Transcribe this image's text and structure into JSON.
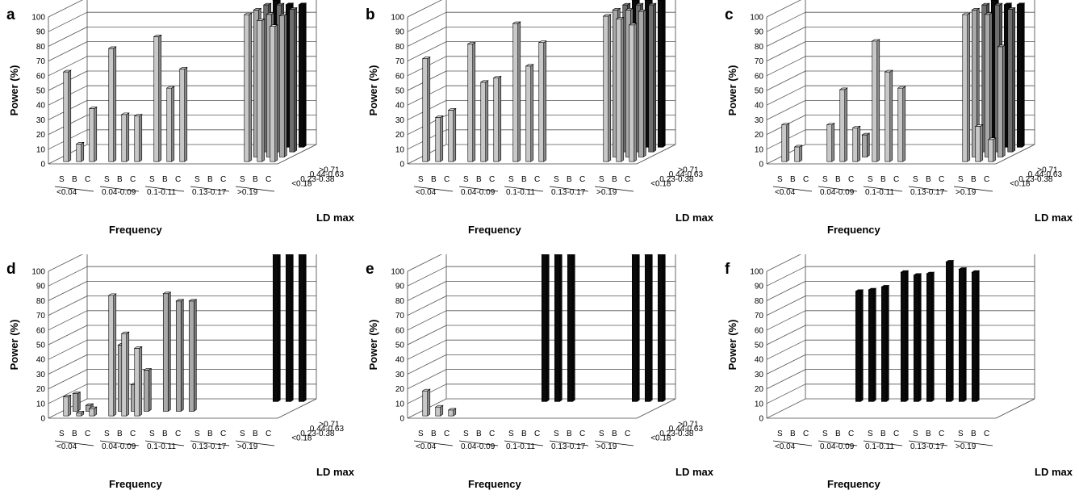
{
  "figure": {
    "panels": [
      "a",
      "b",
      "c",
      "d",
      "e",
      "f"
    ],
    "shade_colors": {
      "<0.18": "#c8c8c8",
      "0.23-0.38": "#a9a9a9",
      "0.44-0.63": "#6f6f6f",
      ">0.71": "#0a0a0a"
    }
  },
  "chart_data": [
    {
      "panel": "a",
      "type": "bar",
      "subtype": "3d-bar",
      "ylabel": "Power (%)",
      "xlabel": "Frequency",
      "zlabel": "LD max",
      "ylim": [
        0,
        100
      ],
      "y_ticks": [
        0,
        10,
        20,
        30,
        40,
        50,
        60,
        70,
        80,
        90,
        100
      ],
      "frequency_groups": [
        "<0.04",
        "0.04-0.09",
        "0.1-0.11",
        "0.13-0.17",
        ">0.19"
      ],
      "methods": [
        "S",
        "B",
        "C"
      ],
      "ld_levels": [
        "<0.18",
        "0.23-0.38",
        "0.44-0.63",
        ">0.71"
      ],
      "bars": [
        {
          "freq": "<0.04",
          "method": "S",
          "ld": "<0.18",
          "value": 61
        },
        {
          "freq": "<0.04",
          "method": "B",
          "ld": "<0.18",
          "value": 12
        },
        {
          "freq": "<0.04",
          "method": "C",
          "ld": "<0.18",
          "value": 36
        },
        {
          "freq": "0.04-0.09",
          "method": "S",
          "ld": "<0.18",
          "value": 77
        },
        {
          "freq": "0.04-0.09",
          "method": "B",
          "ld": "<0.18",
          "value": 32
        },
        {
          "freq": "0.04-0.09",
          "method": "C",
          "ld": "<0.18",
          "value": 31
        },
        {
          "freq": "0.1-0.11",
          "method": "S",
          "ld": "<0.18",
          "value": 85
        },
        {
          "freq": "0.1-0.11",
          "method": "B",
          "ld": "<0.18",
          "value": 50
        },
        {
          "freq": "0.1-0.11",
          "method": "C",
          "ld": "<0.18",
          "value": 63
        },
        {
          "freq": ">0.19",
          "method": "S",
          "ld": "<0.18",
          "value": 100
        },
        {
          "freq": ">0.19",
          "method": "B",
          "ld": "<0.18",
          "value": 96
        },
        {
          "freq": ">0.19",
          "method": "C",
          "ld": "<0.18",
          "value": 92
        },
        {
          "freq": ">0.19",
          "method": "S",
          "ld": "0.23-0.38",
          "value": 100
        },
        {
          "freq": ">0.19",
          "method": "B",
          "ld": "0.23-0.38",
          "value": 97
        },
        {
          "freq": ">0.19",
          "method": "C",
          "ld": "0.23-0.38",
          "value": 96
        },
        {
          "freq": ">0.19",
          "method": "S",
          "ld": "0.44-0.63",
          "value": 100
        },
        {
          "freq": ">0.19",
          "method": "B",
          "ld": "0.44-0.63",
          "value": 100
        },
        {
          "freq": ">0.19",
          "method": "C",
          "ld": "0.44-0.63",
          "value": 97
        },
        {
          "freq": ">0.19",
          "method": "S",
          "ld": ">0.71",
          "value": 100
        },
        {
          "freq": ">0.19",
          "method": "B",
          "ld": ">0.71",
          "value": 97
        },
        {
          "freq": ">0.19",
          "method": "C",
          "ld": ">0.71",
          "value": 97
        }
      ]
    },
    {
      "panel": "b",
      "type": "bar",
      "subtype": "3d-bar",
      "ylabel": "Power (%)",
      "xlabel": "Frequency",
      "zlabel": "LD max",
      "ylim": [
        0,
        100
      ],
      "y_ticks": [
        0,
        10,
        20,
        30,
        40,
        50,
        60,
        70,
        80,
        90,
        100
      ],
      "frequency_groups": [
        "<0.04",
        "0.04-0.09",
        "0.1-0.11",
        "0.13-0.17",
        ">0.19"
      ],
      "methods": [
        "S",
        "B",
        "C"
      ],
      "ld_levels": [
        "<0.18",
        "0.23-0.38",
        "0.44-0.63",
        ">0.71"
      ],
      "bars": [
        {
          "freq": "<0.04",
          "method": "S",
          "ld": "<0.18",
          "value": 70
        },
        {
          "freq": "<0.04",
          "method": "B",
          "ld": "<0.18",
          "value": 30
        },
        {
          "freq": "<0.04",
          "method": "C",
          "ld": "<0.18",
          "value": 35
        },
        {
          "freq": "0.04-0.09",
          "method": "S",
          "ld": "<0.18",
          "value": 80
        },
        {
          "freq": "0.04-0.09",
          "method": "B",
          "ld": "<0.18",
          "value": 54
        },
        {
          "freq": "0.04-0.09",
          "method": "C",
          "ld": "<0.18",
          "value": 57
        },
        {
          "freq": "0.1-0.11",
          "method": "S",
          "ld": "<0.18",
          "value": 94
        },
        {
          "freq": "0.1-0.11",
          "method": "B",
          "ld": "<0.18",
          "value": 65
        },
        {
          "freq": "0.1-0.11",
          "method": "C",
          "ld": "<0.18",
          "value": 81
        },
        {
          "freq": ">0.19",
          "method": "S",
          "ld": "<0.18",
          "value": 99
        },
        {
          "freq": ">0.19",
          "method": "B",
          "ld": "<0.18",
          "value": 97
        },
        {
          "freq": ">0.19",
          "method": "C",
          "ld": "<0.18",
          "value": 93
        },
        {
          "freq": ">0.19",
          "method": "S",
          "ld": "0.23-0.38",
          "value": 100
        },
        {
          "freq": ">0.19",
          "method": "B",
          "ld": "0.23-0.38",
          "value": 100
        },
        {
          "freq": ">0.19",
          "method": "C",
          "ld": "0.23-0.38",
          "value": 99
        },
        {
          "freq": ">0.19",
          "method": "S",
          "ld": "0.44-0.63",
          "value": 100
        },
        {
          "freq": ">0.19",
          "method": "B",
          "ld": "0.44-0.63",
          "value": 100
        },
        {
          "freq": ">0.19",
          "method": "C",
          "ld": "0.44-0.63",
          "value": 100
        },
        {
          "freq": ">0.19",
          "method": "S",
          "ld": ">0.71",
          "value": 100
        },
        {
          "freq": ">0.19",
          "method": "B",
          "ld": ">0.71",
          "value": 100
        },
        {
          "freq": ">0.19",
          "method": "C",
          "ld": ">0.71",
          "value": 100
        }
      ]
    },
    {
      "panel": "c",
      "type": "bar",
      "subtype": "3d-bar",
      "ylabel": "Power (%)",
      "xlabel": "Frequency",
      "zlabel": "LD max",
      "ylim": [
        0,
        100
      ],
      "y_ticks": [
        0,
        10,
        20,
        30,
        40,
        50,
        60,
        70,
        80,
        90,
        100
      ],
      "frequency_groups": [
        "<0.04",
        "0.04-0.09",
        "0.1-0.11",
        "0.13-0.17",
        ">0.19"
      ],
      "methods": [
        "S",
        "B",
        "C"
      ],
      "ld_levels": [
        "<0.18",
        "0.23-0.38",
        "0.44-0.63",
        ">0.71"
      ],
      "bars": [
        {
          "freq": "<0.04",
          "method": "S",
          "ld": "<0.18",
          "value": 25
        },
        {
          "freq": "<0.04",
          "method": "B",
          "ld": "<0.18",
          "value": 10
        },
        {
          "freq": "0.04-0.09",
          "method": "S",
          "ld": "<0.18",
          "value": 25
        },
        {
          "freq": "0.04-0.09",
          "method": "B",
          "ld": "<0.18",
          "value": 49
        },
        {
          "freq": "0.04-0.09",
          "method": "C",
          "ld": "<0.18",
          "value": 23
        },
        {
          "freq": "0.04-0.09",
          "method": "C",
          "ld": "0.23-0.38",
          "value": 15
        },
        {
          "freq": "0.1-0.11",
          "method": "S",
          "ld": "<0.18",
          "value": 82
        },
        {
          "freq": "0.1-0.11",
          "method": "B",
          "ld": "<0.18",
          "value": 61
        },
        {
          "freq": "0.1-0.11",
          "method": "C",
          "ld": "<0.18",
          "value": 50
        },
        {
          "freq": ">0.19",
          "method": "S",
          "ld": "<0.18",
          "value": 100
        },
        {
          "freq": ">0.19",
          "method": "B",
          "ld": "<0.18",
          "value": 24
        },
        {
          "freq": ">0.19",
          "method": "C",
          "ld": "<0.18",
          "value": 15
        },
        {
          "freq": ">0.19",
          "method": "S",
          "ld": "0.23-0.38",
          "value": 100
        },
        {
          "freq": ">0.19",
          "method": "B",
          "ld": "0.23-0.38",
          "value": 97
        },
        {
          "freq": ">0.19",
          "method": "C",
          "ld": "0.23-0.38",
          "value": 75
        },
        {
          "freq": ">0.19",
          "method": "S",
          "ld": "0.44-0.63",
          "value": 100
        },
        {
          "freq": ">0.19",
          "method": "B",
          "ld": "0.44-0.63",
          "value": 100
        },
        {
          "freq": ">0.19",
          "method": "C",
          "ld": "0.44-0.63",
          "value": 97
        },
        {
          "freq": ">0.19",
          "method": "S",
          "ld": ">0.71",
          "value": 100
        },
        {
          "freq": ">0.19",
          "method": "B",
          "ld": ">0.71",
          "value": 97
        },
        {
          "freq": ">0.19",
          "method": "C",
          "ld": ">0.71",
          "value": 97
        }
      ]
    },
    {
      "panel": "d",
      "type": "bar",
      "subtype": "3d-bar",
      "ylabel": "Power (%)",
      "xlabel": "Frequency",
      "zlabel": "LD max",
      "ylim": [
        0,
        100
      ],
      "y_ticks": [
        0,
        10,
        20,
        30,
        40,
        50,
        60,
        70,
        80,
        90,
        100
      ],
      "frequency_groups": [
        "<0.04",
        "0.04-0.09",
        "0.1-0.11",
        "0.13-0.17",
        ">0.19"
      ],
      "methods": [
        "S",
        "B",
        "C"
      ],
      "ld_levels": [
        "<0.18",
        "0.23-0.38",
        "0.44-0.63",
        ">0.71"
      ],
      "bars": [
        {
          "freq": "<0.04",
          "method": "S",
          "ld": "<0.18",
          "value": 13
        },
        {
          "freq": "<0.04",
          "method": "B",
          "ld": "<0.18",
          "value": 2
        },
        {
          "freq": "<0.04",
          "method": "C",
          "ld": "<0.18",
          "value": 5
        },
        {
          "freq": "<0.04",
          "method": "S",
          "ld": "0.23-0.38",
          "value": 12
        },
        {
          "freq": "<0.04",
          "method": "B",
          "ld": "0.23-0.38",
          "value": 4
        },
        {
          "freq": "0.04-0.09",
          "method": "S",
          "ld": "<0.18",
          "value": 82
        },
        {
          "freq": "0.04-0.09",
          "method": "B",
          "ld": "<0.18",
          "value": 56
        },
        {
          "freq": "0.04-0.09",
          "method": "C",
          "ld": "<0.18",
          "value": 46
        },
        {
          "freq": "0.04-0.09",
          "method": "S",
          "ld": "0.23-0.38",
          "value": 45
        },
        {
          "freq": "0.04-0.09",
          "method": "B",
          "ld": "0.23-0.38",
          "value": 18
        },
        {
          "freq": "0.04-0.09",
          "method": "C",
          "ld": "0.23-0.38",
          "value": 28
        },
        {
          "freq": "0.1-0.11",
          "method": "S",
          "ld": "0.23-0.38",
          "value": 80
        },
        {
          "freq": "0.1-0.11",
          "method": "B",
          "ld": "0.23-0.38",
          "value": 75
        },
        {
          "freq": "0.1-0.11",
          "method": "C",
          "ld": "0.23-0.38",
          "value": 75
        },
        {
          "freq": ">0.19",
          "method": "S",
          "ld": ">0.71",
          "value": 100
        },
        {
          "freq": ">0.19",
          "method": "B",
          "ld": ">0.71",
          "value": 100
        },
        {
          "freq": ">0.19",
          "method": "C",
          "ld": ">0.71",
          "value": 100
        }
      ]
    },
    {
      "panel": "e",
      "type": "bar",
      "subtype": "3d-bar",
      "ylabel": "Power (%)",
      "xlabel": "Frequency",
      "zlabel": "LD max",
      "ylim": [
        0,
        100
      ],
      "y_ticks": [
        0,
        10,
        20,
        30,
        40,
        50,
        60,
        70,
        80,
        90,
        100
      ],
      "frequency_groups": [
        "<0.04",
        "0.04-0.09",
        "0.1-0.11",
        "0.13-0.17",
        ">0.19"
      ],
      "methods": [
        "S",
        "B",
        "C"
      ],
      "ld_levels": [
        "<0.18",
        "0.23-0.38",
        "0.44-0.63",
        ">0.71"
      ],
      "bars": [
        {
          "freq": "<0.04",
          "method": "S",
          "ld": "<0.18",
          "value": 17
        },
        {
          "freq": "<0.04",
          "method": "B",
          "ld": "<0.18",
          "value": 6
        },
        {
          "freq": "<0.04",
          "method": "C",
          "ld": "<0.18",
          "value": 4
        },
        {
          "freq": "0.1-0.11",
          "method": "S",
          "ld": ">0.71",
          "value": 100
        },
        {
          "freq": "0.1-0.11",
          "method": "B",
          "ld": ">0.71",
          "value": 100
        },
        {
          "freq": "0.1-0.11",
          "method": "C",
          "ld": ">0.71",
          "value": 100
        },
        {
          "freq": ">0.19",
          "method": "S",
          "ld": ">0.71",
          "value": 100
        },
        {
          "freq": ">0.19",
          "method": "B",
          "ld": ">0.71",
          "value": 100
        },
        {
          "freq": ">0.19",
          "method": "C",
          "ld": ">0.71",
          "value": 100
        }
      ]
    },
    {
      "panel": "f",
      "type": "bar",
      "subtype": "3d-bar",
      "ylabel": "Power (%)",
      "xlabel": "Frequency",
      "zlabel": "LD max",
      "ylim": [
        0,
        100
      ],
      "y_ticks": [
        0,
        10,
        20,
        30,
        40,
        50,
        60,
        70,
        80,
        90,
        100
      ],
      "frequency_groups": [
        "<0.04",
        "0.04-0.09",
        "0.1-0.11",
        "0.13-0.17",
        ">0.19"
      ],
      "methods": [
        "S",
        "B",
        "C"
      ],
      "ld_levels": [],
      "bars": [
        {
          "freq": "0.04-0.09",
          "method": "S",
          "ld": ">0.71",
          "value": 75
        },
        {
          "freq": "0.04-0.09",
          "method": "B",
          "ld": ">0.71",
          "value": 76
        },
        {
          "freq": "0.04-0.09",
          "method": "C",
          "ld": ">0.71",
          "value": 78
        },
        {
          "freq": "0.1-0.11",
          "method": "S",
          "ld": ">0.71",
          "value": 88
        },
        {
          "freq": "0.1-0.11",
          "method": "B",
          "ld": ">0.71",
          "value": 86
        },
        {
          "freq": "0.1-0.11",
          "method": "C",
          "ld": ">0.71",
          "value": 87
        },
        {
          "freq": "0.13-0.17",
          "method": "S",
          "ld": ">0.71",
          "value": 95
        },
        {
          "freq": "0.13-0.17",
          "method": "B",
          "ld": ">0.71",
          "value": 90
        },
        {
          "freq": "0.13-0.17",
          "method": "C",
          "ld": ">0.71",
          "value": 88
        }
      ]
    }
  ]
}
